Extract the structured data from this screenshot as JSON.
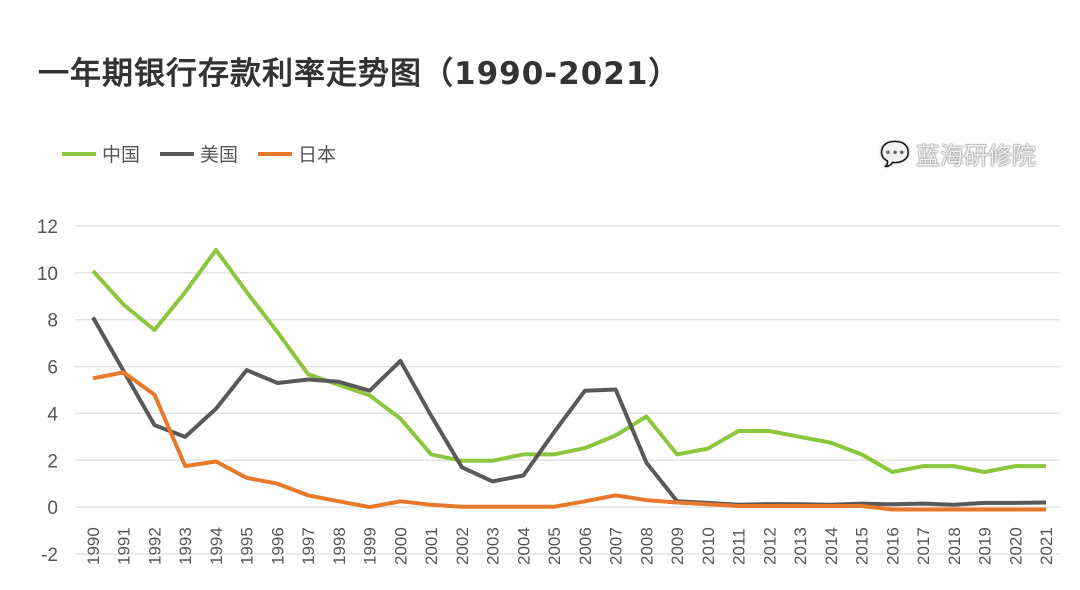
{
  "chart_data": {
    "type": "line",
    "title": "一年期银行存款利率走势图（1990-2021）",
    "x": [
      "1990",
      "1991",
      "1992",
      "1993",
      "1994",
      "1995",
      "1996",
      "1997",
      "1998",
      "1999",
      "2000",
      "2001",
      "2002",
      "2003",
      "2004",
      "2005",
      "2006",
      "2007",
      "2008",
      "2009",
      "2010",
      "2011",
      "2012",
      "2013",
      "2014",
      "2015",
      "2016",
      "2017",
      "2018",
      "2019",
      "2020",
      "2021"
    ],
    "ylim": [
      -2,
      12
    ],
    "yticks": [
      -2,
      0,
      2,
      4,
      6,
      8,
      10,
      12
    ],
    "grid": true,
    "legend_position": "top-left",
    "series": [
      {
        "name": "中国",
        "color": "#8cc63e",
        "values": [
          10.08,
          8.64,
          7.56,
          9.18,
          10.98,
          9.18,
          7.47,
          5.67,
          5.22,
          4.77,
          3.78,
          2.25,
          1.98,
          1.98,
          2.25,
          2.25,
          2.52,
          3.06,
          3.87,
          2.25,
          2.5,
          3.25,
          3.25,
          3.0,
          2.75,
          2.25,
          1.5,
          1.75,
          1.75,
          1.5,
          1.75,
          1.75
        ]
      },
      {
        "name": "美国",
        "color": "#595959",
        "values": [
          8.1,
          5.8,
          3.5,
          3.0,
          4.2,
          5.85,
          5.3,
          5.45,
          5.35,
          4.97,
          6.24,
          3.9,
          1.7,
          1.1,
          1.35,
          3.2,
          4.97,
          5.02,
          1.9,
          0.25,
          0.18,
          0.1,
          0.13,
          0.12,
          0.1,
          0.15,
          0.12,
          0.15,
          0.1,
          0.18,
          0.18,
          0.2
        ]
      },
      {
        "name": "日本",
        "color": "#e8792a",
        "values": [
          5.5,
          5.75,
          4.8,
          1.75,
          1.95,
          1.25,
          1.0,
          0.5,
          0.25,
          0.0,
          0.25,
          0.1,
          0.02,
          0.02,
          0.02,
          0.02,
          0.25,
          0.5,
          0.3,
          0.2,
          0.12,
          0.05,
          0.05,
          0.05,
          0.05,
          0.05,
          -0.1,
          -0.1,
          -0.1,
          -0.1,
          -0.1,
          -0.1
        ]
      }
    ]
  },
  "watermark": "蓝海研修院"
}
